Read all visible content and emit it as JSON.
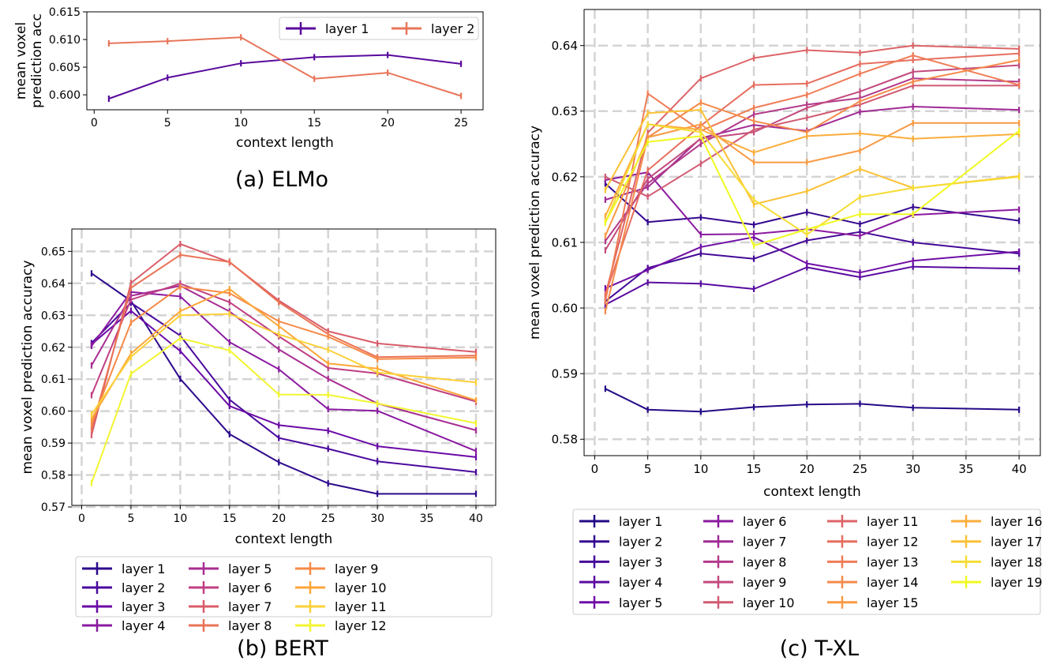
{
  "chart_data": [
    {
      "id": "elmo",
      "type": "line",
      "caption": "(a) ELMo",
      "xlabel": "context length",
      "ylabel": "mean voxel\nprediction acc",
      "xlim": [
        -0.5,
        26.5
      ],
      "ylim": [
        0.5973,
        0.615
      ],
      "xticks": [
        0,
        5,
        10,
        15,
        20,
        25
      ],
      "yticks": [
        0.6,
        0.605,
        0.61,
        0.615
      ],
      "ytick_labels": [
        "0.600",
        "0.605",
        "0.610",
        "0.615"
      ],
      "grid": false,
      "legend": {
        "location": "top-right",
        "columns": 2
      },
      "x": [
        1,
        5,
        10,
        15,
        20,
        25
      ],
      "series": [
        {
          "name": "layer 1",
          "color": "#5a0a9c",
          "values": [
            0.5993,
            0.6031,
            0.6057,
            0.6068,
            0.6072,
            0.6056
          ]
        },
        {
          "name": "layer 2",
          "color": "#e8765a",
          "values": [
            0.6093,
            0.6097,
            0.6104,
            0.6029,
            0.604,
            0.5998
          ]
        }
      ]
    },
    {
      "id": "bert",
      "type": "line",
      "caption": "(b) BERT",
      "xlabel": "context length",
      "ylabel": "mean voxel prediction accuracy",
      "xlim": [
        -1,
        42
      ],
      "ylim": [
        0.5705,
        0.657
      ],
      "xticks": [
        0,
        5,
        10,
        15,
        20,
        25,
        30,
        35,
        40
      ],
      "yticks": [
        0.57,
        0.58,
        0.59,
        0.6,
        0.61,
        0.62,
        0.63,
        0.64,
        0.65
      ],
      "ytick_labels": [
        "0.57",
        "0.58",
        "0.59",
        "0.60",
        "0.61",
        "0.62",
        "0.63",
        "0.64",
        "0.65"
      ],
      "grid": true,
      "legend": {
        "location": "below",
        "columns": 3
      },
      "x": [
        1,
        5,
        10,
        15,
        20,
        25,
        30,
        40
      ],
      "series": [
        {
          "name": "layer 1",
          "color": "#2d0a8c",
          "values": [
            0.6431,
            0.6345,
            0.6101,
            0.5928,
            0.584,
            0.5774,
            0.5741,
            0.5741
          ]
        },
        {
          "name": "layer 2",
          "color": "#4a0a9e",
          "values": [
            0.6213,
            0.6339,
            0.6236,
            0.6036,
            0.5916,
            0.5882,
            0.5843,
            0.5809
          ]
        },
        {
          "name": "layer 3",
          "color": "#6a0aa6",
          "values": [
            0.6209,
            0.6314,
            0.6188,
            0.6016,
            0.5956,
            0.5939,
            0.589,
            0.5856
          ]
        },
        {
          "name": "layer 4",
          "color": "#8a1aa0",
          "values": [
            0.6204,
            0.6373,
            0.6359,
            0.6216,
            0.6131,
            0.6006,
            0.6001,
            0.5875
          ]
        },
        {
          "name": "layer 5",
          "color": "#a82e93",
          "values": [
            0.6143,
            0.6361,
            0.6392,
            0.6312,
            0.6193,
            0.6101,
            0.6024,
            0.594
          ]
        },
        {
          "name": "layer 6",
          "color": "#c03f83",
          "values": [
            0.605,
            0.6349,
            0.6399,
            0.6341,
            0.6234,
            0.6135,
            0.6118,
            0.603
          ]
        },
        {
          "name": "layer 7",
          "color": "#d95c6a",
          "values": [
            0.5925,
            0.6401,
            0.6523,
            0.6466,
            0.6346,
            0.625,
            0.6212,
            0.6185
          ]
        },
        {
          "name": "layer 8",
          "color": "#ea7356",
          "values": [
            0.5944,
            0.6386,
            0.6489,
            0.6467,
            0.6341,
            0.6241,
            0.6169,
            0.6174
          ]
        },
        {
          "name": "layer 9",
          "color": "#f68a47",
          "values": [
            0.5962,
            0.6277,
            0.6389,
            0.6369,
            0.6281,
            0.6233,
            0.6163,
            0.6168
          ]
        },
        {
          "name": "layer 10",
          "color": "#fca63a",
          "values": [
            0.5976,
            0.618,
            0.6313,
            0.6382,
            0.6266,
            0.6149,
            0.6133,
            0.6034
          ]
        },
        {
          "name": "layer 11",
          "color": "#fbd13a",
          "values": [
            0.599,
            0.617,
            0.63,
            0.6304,
            0.624,
            0.6192,
            0.6121,
            0.609
          ]
        },
        {
          "name": "layer 12",
          "color": "#f2f531",
          "values": [
            0.5775,
            0.6117,
            0.6228,
            0.619,
            0.6052,
            0.6051,
            0.6024,
            0.5962
          ]
        }
      ]
    },
    {
      "id": "txl",
      "type": "line",
      "caption": "(c) T-XL",
      "xlabel": "context length",
      "ylabel": "mean voxel prediction accuracy",
      "xlim": [
        -1,
        42
      ],
      "ylim": [
        0.5775,
        0.6455
      ],
      "xticks": [
        0,
        5,
        10,
        15,
        20,
        25,
        30,
        35,
        40
      ],
      "yticks": [
        0.58,
        0.59,
        0.6,
        0.61,
        0.62,
        0.63,
        0.64
      ],
      "ytick_labels": [
        "0.58",
        "0.59",
        "0.60",
        "0.61",
        "0.62",
        "0.63",
        "0.64"
      ],
      "grid": true,
      "legend": {
        "location": "below",
        "columns": 4
      },
      "x": [
        1,
        5,
        10,
        15,
        20,
        25,
        30,
        40
      ],
      "series": [
        {
          "name": "layer 1",
          "color": "#250a86",
          "values": [
            0.5877,
            0.5845,
            0.5842,
            0.5849,
            0.5853,
            0.5854,
            0.5848,
            0.5845
          ]
        },
        {
          "name": "layer 2",
          "color": "#35098f",
          "values": [
            0.619,
            0.6131,
            0.6138,
            0.6127,
            0.6146,
            0.6128,
            0.6154,
            0.6133
          ]
        },
        {
          "name": "layer 3",
          "color": "#450a98",
          "values": [
            0.601,
            0.6061,
            0.6083,
            0.6075,
            0.6103,
            0.6116,
            0.61,
            0.6083
          ]
        },
        {
          "name": "layer 4",
          "color": "#5a0ba0",
          "values": [
            0.6005,
            0.6039,
            0.6037,
            0.6029,
            0.6062,
            0.6047,
            0.6063,
            0.606
          ]
        },
        {
          "name": "layer 5",
          "color": "#700ea6",
          "values": [
            0.603,
            0.6058,
            0.6093,
            0.6108,
            0.6068,
            0.6054,
            0.6072,
            0.6086
          ]
        },
        {
          "name": "layer 6",
          "color": "#8a1a9f",
          "values": [
            0.6195,
            0.6207,
            0.6112,
            0.6113,
            0.612,
            0.611,
            0.6142,
            0.615
          ]
        },
        {
          "name": "layer 7",
          "color": "#a02a95",
          "values": [
            0.6165,
            0.6184,
            0.6259,
            0.6279,
            0.627,
            0.6299,
            0.6307,
            0.6302
          ]
        },
        {
          "name": "layer 8",
          "color": "#b23a8a",
          "values": [
            0.6102,
            0.619,
            0.625,
            0.6295,
            0.631,
            0.632,
            0.635,
            0.6345
          ]
        },
        {
          "name": "layer 9",
          "color": "#c24a7e",
          "values": [
            0.6088,
            0.6197,
            0.6258,
            0.6268,
            0.6305,
            0.633,
            0.636,
            0.637
          ]
        },
        {
          "name": "layer 10",
          "color": "#d05a72",
          "values": [
            0.62,
            0.617,
            0.622,
            0.6272,
            0.629,
            0.631,
            0.6339,
            0.6339
          ]
        },
        {
          "name": "layer 11",
          "color": "#dc6467",
          "values": [
            0.602,
            0.6267,
            0.635,
            0.6381,
            0.6393,
            0.6389,
            0.64,
            0.6395
          ]
        },
        {
          "name": "layer 12",
          "color": "#e66e5f",
          "values": [
            0.602,
            0.621,
            0.6278,
            0.634,
            0.6342,
            0.6372,
            0.6378,
            0.6388
          ]
        },
        {
          "name": "layer 13",
          "color": "#ef7c55",
          "values": [
            0.601,
            0.6327,
            0.627,
            0.6305,
            0.6325,
            0.6357,
            0.6385,
            0.634
          ]
        },
        {
          "name": "layer 14",
          "color": "#f58a4b",
          "values": [
            0.5995,
            0.626,
            0.6313,
            0.6285,
            0.6268,
            0.6315,
            0.6345,
            0.6378
          ]
        },
        {
          "name": "layer 15",
          "color": "#f99a43",
          "values": [
            0.611,
            0.626,
            0.628,
            0.6222,
            0.6222,
            0.624,
            0.6282,
            0.6282
          ]
        },
        {
          "name": "layer 16",
          "color": "#fbad3c",
          "values": [
            0.614,
            0.628,
            0.6272,
            0.6237,
            0.6262,
            0.6266,
            0.6258,
            0.6265
          ]
        },
        {
          "name": "layer 17",
          "color": "#fbc136",
          "values": [
            0.618,
            0.6297,
            0.6302,
            0.6158,
            0.6178,
            0.6212,
            0.6183,
            0.6201
          ]
        },
        {
          "name": "layer 18",
          "color": "#f6dc36",
          "values": [
            0.613,
            0.628,
            0.6268,
            0.6165,
            0.6112,
            0.6169,
            0.6183,
            0.62
          ]
        },
        {
          "name": "layer 19",
          "color": "#f0f921",
          "values": [
            0.613,
            0.6253,
            0.6262,
            0.6095,
            0.612,
            0.6143,
            0.6143,
            0.627
          ]
        }
      ]
    }
  ]
}
